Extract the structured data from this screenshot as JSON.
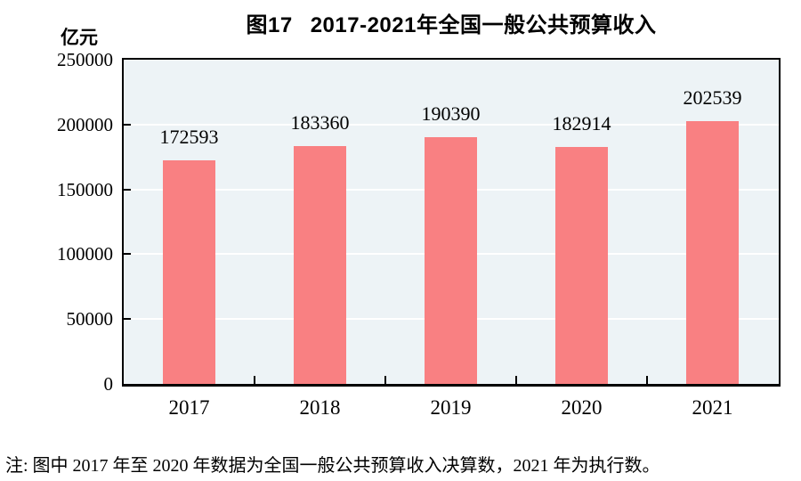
{
  "title": {
    "figure_label": "图17",
    "text": "2017-2021年全国一般公共预算收入"
  },
  "chart_data": {
    "type": "bar",
    "title": "图17 2017-2021年全国一般公共预算收入",
    "unit_label": "亿元",
    "categories": [
      "2017",
      "2018",
      "2019",
      "2020",
      "2021"
    ],
    "values": [
      172593,
      183360,
      190390,
      182914,
      202539
    ],
    "data_labels": [
      "172593",
      "183360",
      "190390",
      "182914",
      "202539"
    ],
    "ylim": [
      0,
      250000
    ],
    "ytick_interval": 50000,
    "ytick_labels": [
      "0",
      "50000",
      "100000",
      "150000",
      "200000",
      "250000"
    ],
    "grid": true,
    "legend_position": "none",
    "colors": {
      "bar": "#F98082",
      "plot_background": "#EDF3F6",
      "gridline": "#FFFFFF",
      "axis": "#000000",
      "text": "#000000"
    }
  },
  "note": {
    "text": "注: 图中 2017 年至 2020 年数据为全国一般公共预算收入决算数，2021 年为执行数。"
  }
}
